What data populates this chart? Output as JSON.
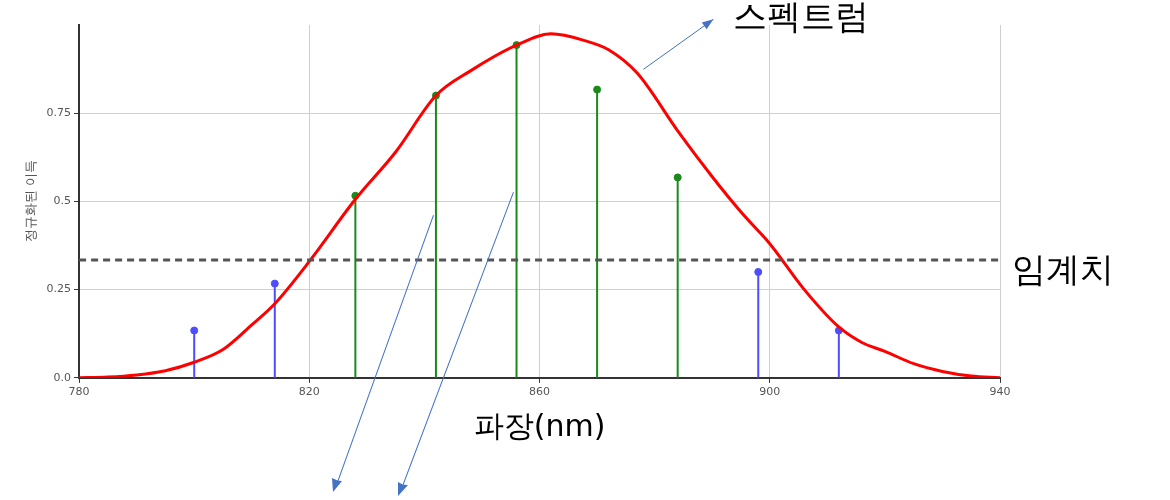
{
  "chart_data": {
    "type": "line",
    "xlabel": "파장(nm)",
    "ylabel": "정규화된 이득",
    "xlim": [
      780,
      940
    ],
    "xticks": [
      780,
      820,
      860,
      900,
      940
    ],
    "ylim": [
      0,
      1
    ],
    "yticks": [
      {
        "value": 0,
        "label": "0.0"
      },
      0.25,
      0.5,
      0.75
    ],
    "grid": true,
    "legend": false,
    "series": [
      {
        "color": "#ff0000",
        "marker": "none",
        "line_style": "solid",
        "x": [
          780,
          785,
          790,
          795,
          800,
          805,
          810,
          814,
          820,
          828,
          835,
          842,
          848,
          856,
          862,
          868,
          872,
          877,
          884,
          890,
          895,
          900,
          906,
          912,
          916,
          920,
          925,
          930,
          935,
          940
        ],
        "values": [
          0,
          0.002,
          0.008,
          0.02,
          0.044,
          0.08,
          0.15,
          0.21,
          0.33,
          0.506,
          0.64,
          0.8,
          0.87,
          0.943,
          0.975,
          0.955,
          0.93,
          0.863,
          0.7,
          0.57,
          0.47,
          0.38,
          0.25,
          0.144,
          0.1,
          0.075,
          0.04,
          0.018,
          0.005,
          0
        ]
      },
      {
        "type": "lollipop",
        "color": "#1a8a1a",
        "marker": "circle",
        "x": [
          828,
          842,
          856,
          870,
          884
        ],
        "values": [
          0.516,
          0.8,
          0.943,
          0.817,
          0.568
        ]
      },
      {
        "type": "lollipop",
        "color": "#4d4dff",
        "marker": "circle",
        "x": [
          800,
          814,
          898,
          912
        ],
        "values": [
          0.134,
          0.267,
          0.3,
          0.134
        ]
      }
    ],
    "ref_lines": [
      {
        "axis": "y",
        "value": 0.334,
        "label": "임계치",
        "color": "#555555",
        "line_style": "dashed"
      }
    ],
    "annotations": [
      {
        "text": "스펙트럼",
        "x": 877,
        "y": 0.863
      }
    ]
  }
}
